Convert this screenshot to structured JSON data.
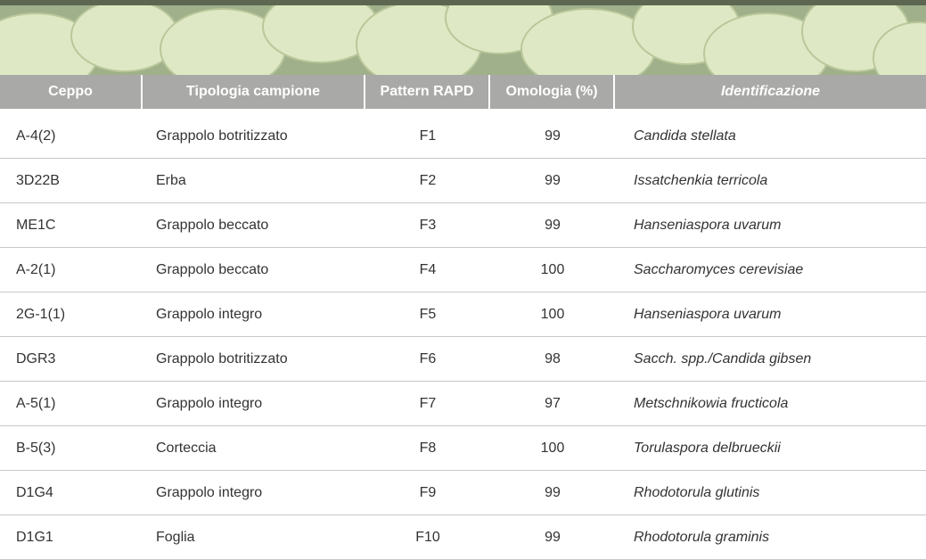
{
  "table": {
    "header": [
      "Ceppo",
      "Tipologia campione",
      "Pattern RAPD",
      "Omologia (%)",
      "Identificazione"
    ],
    "rows": [
      [
        "A-4(2)",
        "Grappolo botritizzato",
        "F1",
        99,
        "Candida stellata"
      ],
      [
        "3D22B",
        "Erba",
        "F2",
        99,
        "Issatchenkia terricola"
      ],
      [
        "ME1C",
        "Grappolo beccato",
        "F3",
        99,
        "Hanseniaspora uvarum"
      ],
      [
        "A-2(1)",
        "Grappolo beccato",
        "F4",
        100,
        "Saccharomyces cerevisiae"
      ],
      [
        "2G-1(1)",
        "Grappolo integro",
        "F5",
        100,
        "Hanseniaspora uvarum"
      ],
      [
        "DGR3",
        "Grappolo botritizzato",
        "F6",
        98,
        "Sacch. spp./Candida gibsen"
      ],
      [
        "A-5(1)",
        "Grappolo integro",
        "F7",
        97,
        "Metschnikowia fructicola"
      ],
      [
        "B-5(3)",
        "Corteccia",
        "F8",
        100,
        "Torulaspora delbrueckii"
      ],
      [
        "D1G4",
        "Grappolo integro",
        "F9",
        99,
        "Rhodotorula glutinis"
      ],
      [
        "D1G1",
        "Foglia",
        "F10",
        99,
        "Rhodotorula graminis"
      ]
    ]
  }
}
